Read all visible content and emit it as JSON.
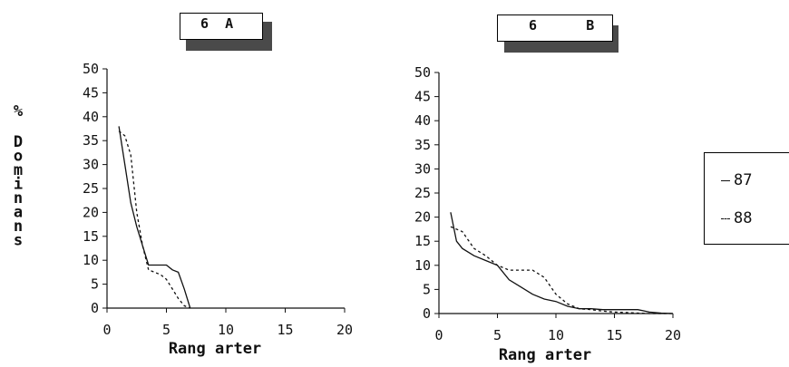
{
  "chart_data": [
    {
      "type": "line",
      "title": "6  A",
      "xlabel": "Rang arter",
      "ylabel": "% Dominans",
      "xlim": [
        0,
        20
      ],
      "ylim": [
        0,
        50
      ],
      "xticks": [
        0,
        5,
        10,
        15,
        20
      ],
      "yticks": [
        0,
        5,
        10,
        15,
        20,
        25,
        30,
        35,
        40,
        45,
        50
      ],
      "grid": false,
      "series": [
        {
          "name": "87",
          "style": "solid",
          "x": [
            1,
            1.5,
            2,
            2.5,
            3,
            3.5,
            4,
            4.5,
            5,
            5.5,
            6,
            6.5,
            7
          ],
          "y": [
            38,
            30,
            22,
            17,
            13,
            9,
            9,
            9,
            9,
            8,
            7.5,
            4,
            0
          ]
        },
        {
          "name": "88",
          "style": "dashed",
          "x": [
            1,
            1.5,
            2,
            2.5,
            3,
            3.5,
            4,
            4.5,
            5,
            5.5,
            6,
            6.5,
            7
          ],
          "y": [
            37,
            36,
            32,
            20,
            13,
            8,
            7.5,
            7,
            6,
            4,
            2,
            0.5,
            0
          ]
        }
      ]
    },
    {
      "type": "line",
      "title": "6      B",
      "xlabel": "Rang arter",
      "ylabel": "",
      "xlim": [
        0,
        20
      ],
      "ylim": [
        0,
        50
      ],
      "xticks": [
        0,
        5,
        10,
        15,
        20
      ],
      "yticks": [
        0,
        5,
        10,
        15,
        20,
        25,
        30,
        35,
        40,
        45,
        50
      ],
      "grid": false,
      "legend_position": "right",
      "series": [
        {
          "name": "87",
          "style": "solid",
          "x": [
            1,
            1.5,
            2,
            3,
            4,
            5,
            6,
            7,
            8,
            9,
            10,
            11,
            12,
            13,
            14,
            15,
            16,
            17,
            18,
            19,
            20
          ],
          "y": [
            21,
            15,
            13.5,
            12,
            11,
            10,
            7,
            5.5,
            4,
            3,
            2.5,
            1.5,
            1,
            1,
            0.8,
            0.8,
            0.8,
            0.8,
            0.3,
            0.1,
            0
          ]
        },
        {
          "name": "88",
          "style": "dashed",
          "x": [
            1,
            2,
            3,
            4,
            5,
            6,
            7,
            8,
            9,
            10,
            11,
            12,
            13,
            14,
            15,
            16,
            17,
            18,
            19,
            20
          ],
          "y": [
            18,
            17,
            13.5,
            12,
            10,
            9,
            9,
            9,
            7.5,
            4,
            2,
            1,
            0.8,
            0.5,
            0.3,
            0.2,
            0.1,
            0,
            0,
            0
          ]
        }
      ]
    }
  ],
  "legend": {
    "items": [
      "87",
      "88"
    ]
  }
}
